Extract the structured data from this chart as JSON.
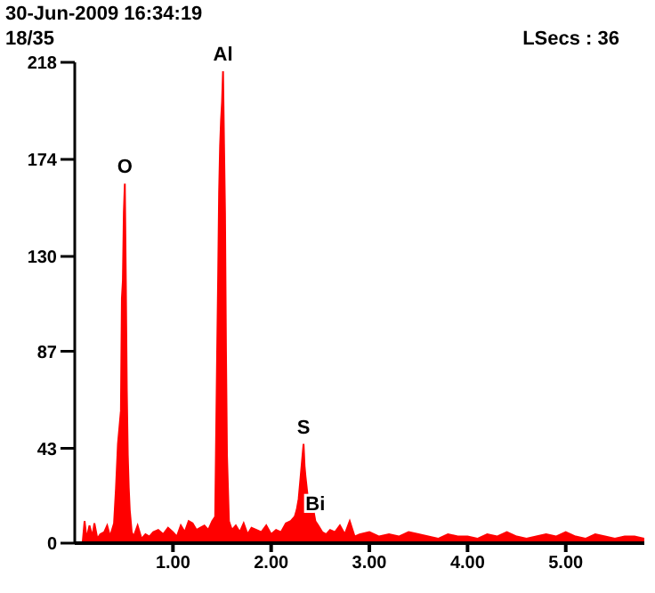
{
  "chart_data": {
    "type": "area",
    "title": "30-Jun-2009 16:34:19",
    "annotations": [
      "18/35",
      "LSecs : 36",
      {
        "text": "O",
        "x": 0.51,
        "y": 163
      },
      {
        "text": "Al",
        "x": 1.51,
        "y": 214
      },
      {
        "text": "S",
        "x": 2.33,
        "y": 45
      },
      {
        "text": "Bi",
        "x": 2.45,
        "y": 10
      }
    ],
    "x": [
      0.08,
      0.1,
      0.12,
      0.15,
      0.18,
      0.2,
      0.23,
      0.26,
      0.3,
      0.33,
      0.36,
      0.38,
      0.4,
      0.42,
      0.44,
      0.46,
      0.47,
      0.48,
      0.49,
      0.5,
      0.51,
      0.52,
      0.53,
      0.54,
      0.55,
      0.56,
      0.58,
      0.6,
      0.64,
      0.68,
      0.72,
      0.76,
      0.8,
      0.85,
      0.9,
      0.95,
      1.0,
      1.04,
      1.08,
      1.12,
      1.16,
      1.2,
      1.24,
      1.28,
      1.32,
      1.36,
      1.4,
      1.43,
      1.45,
      1.46,
      1.47,
      1.48,
      1.49,
      1.5,
      1.51,
      1.52,
      1.53,
      1.54,
      1.55,
      1.57,
      1.6,
      1.64,
      1.68,
      1.72,
      1.76,
      1.8,
      1.85,
      1.9,
      1.95,
      2.0,
      2.05,
      2.1,
      2.15,
      2.2,
      2.24,
      2.26,
      2.28,
      2.3,
      2.32,
      2.33,
      2.34,
      2.35,
      2.37,
      2.39,
      2.41,
      2.43,
      2.45,
      2.48,
      2.52,
      2.56,
      2.6,
      2.65,
      2.7,
      2.75,
      2.8,
      2.85,
      2.9,
      3.0,
      3.1,
      3.2,
      3.3,
      3.4,
      3.5,
      3.6,
      3.7,
      3.8,
      3.9,
      4.0,
      4.1,
      4.2,
      4.3,
      4.4,
      4.5,
      4.6,
      4.7,
      4.8,
      4.9,
      5.0,
      5.1,
      5.2,
      5.3,
      5.4,
      5.5,
      5.6,
      5.7,
      5.8
    ],
    "series": [
      {
        "color": "#ff0000",
        "values": [
          0,
          10,
          2,
          8,
          3,
          9,
          2,
          4,
          5,
          8,
          3,
          6,
          9,
          25,
          45,
          55,
          60,
          111,
          119,
          150,
          163,
          119,
          69,
          40,
          25,
          15,
          5,
          3,
          8,
          2,
          4,
          3,
          5,
          6,
          4,
          7,
          5,
          3,
          8,
          5,
          10,
          9,
          6,
          7,
          8,
          6,
          10,
          12,
          86,
          120,
          159,
          180,
          192,
          200,
          214,
          181,
          150,
          87,
          40,
          10,
          6,
          8,
          5,
          9,
          4,
          7,
          6,
          5,
          8,
          4,
          6,
          5,
          9,
          10,
          12,
          15,
          20,
          30,
          40,
          45,
          35,
          30,
          22,
          20,
          16,
          15,
          10,
          8,
          5,
          4,
          6,
          5,
          8,
          4,
          10,
          3,
          4,
          5,
          3,
          4,
          3,
          5,
          4,
          3,
          2,
          4,
          3,
          3,
          2,
          4,
          3,
          5,
          3,
          2,
          3,
          4,
          3,
          5,
          3,
          2,
          4,
          3,
          2,
          3,
          3,
          2
        ]
      }
    ],
    "xlim": [
      0,
      5.8
    ],
    "xticks": [
      {
        "value": 1,
        "label": "1.00"
      },
      {
        "value": 2,
        "label": "2.00"
      },
      {
        "value": 3,
        "label": "3.00"
      },
      {
        "value": 4,
        "label": "4.00"
      },
      {
        "value": 5,
        "label": "5.00"
      }
    ],
    "ylim": [
      0,
      218
    ],
    "yticks": [
      0,
      43,
      87,
      130,
      174,
      218
    ],
    "grid": false,
    "legend": false,
    "marker": "none"
  }
}
